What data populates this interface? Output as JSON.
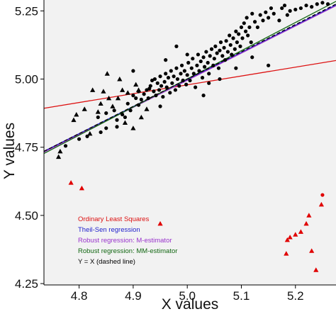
{
  "chart_data": {
    "type": "scatter",
    "xlabel": "X values",
    "ylabel": "Y values",
    "xlim": [
      4.735,
      5.275
    ],
    "ylim": [
      4.245,
      5.29
    ],
    "xticks": [
      4.8,
      4.9,
      5.0,
      5.1,
      5.2
    ],
    "xtick_labels": [
      "4.8",
      "4.9",
      "5.0",
      "5.1",
      "5.2"
    ],
    "yticks": [
      4.25,
      4.5,
      4.75,
      5.0,
      5.25
    ],
    "ytick_labels": [
      "4.25",
      "4.50",
      "4.75",
      "5.00",
      "5.25"
    ],
    "grid": false,
    "legend_position": "bottom-left",
    "colors": {
      "background": "#f2f2f2",
      "points": "#000000",
      "outliers": "#e00000",
      "ols": "#dd1111",
      "theil_sen": "#2222cc",
      "m_estimator": "#9933cc",
      "mm_estimator": "#116611",
      "identity": "#000000"
    },
    "fits": [
      {
        "name": "Ordinary Least Squares",
        "color": "#dd1111",
        "dashed": false,
        "points": [
          [
            4.735,
            4.893
          ],
          [
            5.275,
            5.068
          ]
        ]
      },
      {
        "name": "Theil-Sen regression",
        "color": "#2222cc",
        "dashed": false,
        "points": [
          [
            4.735,
            4.735
          ],
          [
            5.275,
            5.272
          ]
        ]
      },
      {
        "name": "Robust regression: M-estimator",
        "color": "#9933cc",
        "dashed": false,
        "points": [
          [
            4.735,
            4.732
          ],
          [
            5.275,
            5.269
          ]
        ]
      },
      {
        "name": "Robust regression: MM-estimator",
        "color": "#116611",
        "dashed": false,
        "points": [
          [
            4.735,
            4.727
          ],
          [
            5.275,
            5.285
          ]
        ]
      },
      {
        "name": "Y = X (dashed line)",
        "color": "#000000",
        "dashed": true,
        "points": [
          [
            4.735,
            4.735
          ],
          [
            5.275,
            5.275
          ]
        ]
      }
    ],
    "series": [
      {
        "name": "",
        "marker": "circle",
        "color": "#000000",
        "points": [
          [
            4.775,
            4.755
          ],
          [
            4.8,
            4.78
          ],
          [
            4.815,
            4.79
          ],
          [
            4.84,
            4.805
          ],
          [
            4.85,
            4.82
          ],
          [
            4.835,
            4.86
          ],
          [
            4.85,
            4.875
          ],
          [
            4.865,
            4.885
          ],
          [
            4.87,
            4.85
          ],
          [
            4.87,
            4.825
          ],
          [
            4.88,
            4.87
          ],
          [
            4.885,
            4.86
          ],
          [
            4.89,
            4.91
          ],
          [
            4.895,
            4.885
          ],
          [
            4.9,
            4.94
          ],
          [
            4.905,
            4.93
          ],
          [
            4.91,
            4.905
          ],
          [
            4.91,
            4.955
          ],
          [
            4.915,
            4.925
          ],
          [
            4.92,
            4.945
          ],
          [
            4.925,
            4.96
          ],
          [
            4.928,
            4.93
          ],
          [
            4.93,
            4.965
          ],
          [
            4.932,
            4.975
          ],
          [
            4.935,
            4.995
          ],
          [
            4.938,
            4.955
          ],
          [
            4.94,
            5.0
          ],
          [
            4.942,
            4.94
          ],
          [
            4.945,
            4.985
          ],
          [
            4.948,
            4.96
          ],
          [
            4.95,
            5.01
          ],
          [
            4.952,
            4.975
          ],
          [
            4.955,
            4.935
          ],
          [
            4.958,
            4.99
          ],
          [
            4.96,
            5.02
          ],
          [
            4.962,
            4.97
          ],
          [
            4.965,
            5.005
          ],
          [
            4.968,
            4.95
          ],
          [
            4.97,
            5.03
          ],
          [
            4.972,
            4.985
          ],
          [
            4.975,
            5.01
          ],
          [
            4.978,
            4.96
          ],
          [
            4.98,
            5.04
          ],
          [
            4.982,
            5.0
          ],
          [
            4.985,
            4.975
          ],
          [
            4.988,
            5.02
          ],
          [
            4.99,
            5.05
          ],
          [
            4.992,
            4.995
          ],
          [
            4.995,
            5.03
          ],
          [
            4.998,
            4.98
          ],
          [
            5.0,
            5.015
          ],
          [
            5.002,
            5.06
          ],
          [
            5.005,
            4.995
          ],
          [
            5.008,
            5.04
          ],
          [
            5.01,
            5.075
          ],
          [
            5.012,
            5.02
          ],
          [
            5.015,
            4.97
          ],
          [
            5.018,
            5.05
          ],
          [
            5.02,
            5.09
          ],
          [
            5.022,
            5.03
          ],
          [
            5.025,
            5.065
          ],
          [
            5.028,
            5.005
          ],
          [
            5.03,
            5.08
          ],
          [
            5.032,
            5.045
          ],
          [
            5.035,
            5.1
          ],
          [
            5.038,
            5.06
          ],
          [
            5.04,
            5.02
          ],
          [
            5.042,
            5.085
          ],
          [
            5.045,
            5.11
          ],
          [
            5.048,
            5.05
          ],
          [
            5.05,
            5.075
          ],
          [
            5.052,
            5.12
          ],
          [
            5.055,
            5.095
          ],
          [
            5.058,
            5.04
          ],
          [
            5.06,
            5.105
          ],
          [
            5.062,
            5.135
          ],
          [
            5.065,
            5.085
          ],
          [
            5.068,
            5.115
          ],
          [
            5.07,
            5.07
          ],
          [
            5.072,
            5.14
          ],
          [
            5.075,
            5.1
          ],
          [
            5.078,
            5.16
          ],
          [
            5.08,
            5.125
          ],
          [
            5.082,
            5.09
          ],
          [
            5.085,
            5.15
          ],
          [
            5.088,
            5.11
          ],
          [
            5.09,
            5.175
          ],
          [
            5.092,
            5.135
          ],
          [
            5.095,
            5.165
          ],
          [
            5.098,
            5.12
          ],
          [
            5.1,
            5.19
          ],
          [
            5.102,
            5.15
          ],
          [
            5.105,
            5.205
          ],
          [
            5.108,
            5.175
          ],
          [
            5.11,
            5.225
          ],
          [
            5.112,
            5.16
          ],
          [
            5.115,
            5.19
          ],
          [
            5.118,
            5.135
          ],
          [
            5.12,
            5.24
          ],
          [
            5.125,
            5.21
          ],
          [
            5.13,
            5.19
          ],
          [
            5.135,
            5.235
          ],
          [
            5.14,
            5.215
          ],
          [
            5.145,
            5.245
          ],
          [
            5.15,
            5.225
          ],
          [
            5.155,
            5.26
          ],
          [
            5.16,
            5.24
          ],
          [
            5.17,
            5.215
          ],
          [
            5.175,
            5.26
          ],
          [
            5.18,
            5.27
          ],
          [
            5.185,
            5.235
          ],
          [
            5.19,
            5.25
          ],
          [
            5.2,
            5.255
          ],
          [
            5.21,
            5.26
          ],
          [
            5.22,
            5.27
          ],
          [
            5.23,
            5.265
          ],
          [
            5.24,
            5.275
          ],
          [
            5.25,
            5.28
          ],
          [
            5.26,
            5.275
          ],
          [
            5.15,
            5.05
          ],
          [
            5.04,
            4.985
          ],
          [
            5.06,
            5.0
          ],
          [
            4.96,
            5.07
          ],
          [
            5.0,
            5.09
          ],
          [
            4.98,
            5.12
          ],
          [
            5.09,
            5.04
          ],
          [
            5.12,
            5.08
          ],
          [
            5.03,
            4.94
          ],
          [
            4.95,
            4.9
          ],
          [
            4.9,
            5.03
          ]
        ]
      },
      {
        "name": "",
        "marker": "triangle",
        "color": "#000000",
        "points": [
          [
            4.762,
            4.715
          ],
          [
            4.765,
            4.735
          ],
          [
            4.79,
            4.85
          ],
          [
            4.795,
            4.87
          ],
          [
            4.81,
            4.89
          ],
          [
            4.825,
            4.96
          ],
          [
            4.835,
            4.88
          ],
          [
            4.845,
            4.955
          ],
          [
            4.852,
            5.02
          ],
          [
            4.862,
            4.9
          ],
          [
            4.872,
            4.93
          ],
          [
            4.885,
            4.84
          ],
          [
            4.89,
            4.95
          ],
          [
            4.9,
            4.82
          ],
          [
            4.915,
            4.86
          ],
          [
            4.855,
            4.93
          ],
          [
            4.875,
            5.0
          ],
          [
            4.905,
            4.98
          ],
          [
            4.925,
            4.89
          ],
          [
            4.82,
            4.8
          ],
          [
            4.84,
            4.91
          ],
          [
            4.88,
            4.96
          ],
          [
            4.91,
            4.96
          ]
        ]
      },
      {
        "name": "",
        "marker": "triangle",
        "color": "#e00000",
        "points": [
          [
            4.785,
            4.62
          ],
          [
            4.805,
            4.6
          ],
          [
            4.95,
            4.47
          ],
          [
            5.183,
            4.36
          ],
          [
            5.185,
            4.41
          ],
          [
            5.19,
            4.42
          ],
          [
            5.2,
            4.43
          ],
          [
            5.21,
            4.44
          ],
          [
            5.22,
            4.47
          ],
          [
            5.225,
            4.5
          ],
          [
            5.23,
            4.37
          ],
          [
            5.238,
            4.3
          ],
          [
            5.248,
            4.54
          ]
        ]
      },
      {
        "name": "",
        "marker": "circle",
        "color": "#e00000",
        "points": [
          [
            5.25,
            4.575
          ]
        ]
      }
    ]
  }
}
